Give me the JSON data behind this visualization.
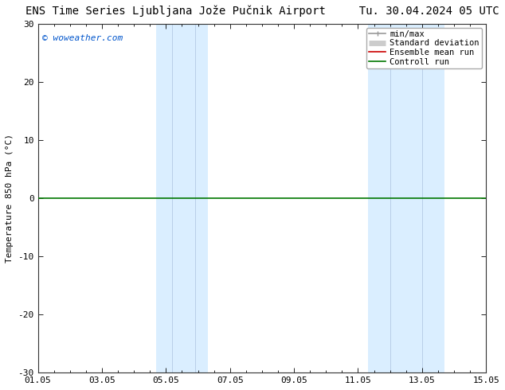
{
  "title_left": "ENS Time Series Ljubljana Jože Pučnik Airport",
  "title_right": "Tu. 30.04.2024 05 UTC",
  "ylabel": "Temperature 850 hPa (°C)",
  "watermark": "© woweather.com",
  "watermark_color": "#0055cc",
  "xlim_start": 0,
  "xlim_end": 14,
  "ylim": [
    -30,
    30
  ],
  "yticks": [
    -30,
    -20,
    -10,
    0,
    10,
    20,
    30
  ],
  "xtick_labels": [
    "01.05",
    "03.05",
    "05.05",
    "07.05",
    "09.05",
    "11.05",
    "13.05",
    "15.05"
  ],
  "xtick_positions": [
    0,
    2,
    4,
    6,
    8,
    10,
    12,
    14
  ],
  "shaded_regions": [
    {
      "xmin": 3.7,
      "xmax": 5.3,
      "color": "#daeeff"
    },
    {
      "xmin": 10.3,
      "xmax": 12.7,
      "color": "#daeeff"
    }
  ],
  "vertical_lines": [
    {
      "x": 4.2,
      "color": "#b8cfe8",
      "lw": 0.7
    },
    {
      "x": 4.9,
      "color": "#b8cfe8",
      "lw": 0.7
    },
    {
      "x": 11.0,
      "color": "#b8cfe8",
      "lw": 0.7
    },
    {
      "x": 12.0,
      "color": "#b8cfe8",
      "lw": 0.7
    }
  ],
  "zero_line_color": "#007700",
  "zero_line_lw": 1.2,
  "bg_color": "#ffffff",
  "plot_bg_color": "#ffffff",
  "legend_entries": [
    {
      "label": "min/max",
      "color": "#999999",
      "lw": 1.2
    },
    {
      "label": "Standard deviation",
      "color": "#cccccc",
      "lw": 5
    },
    {
      "label": "Ensemble mean run",
      "color": "#cc0000",
      "lw": 1.2
    },
    {
      "label": "Controll run",
      "color": "#007700",
      "lw": 1.2
    }
  ],
  "title_fontsize": 10,
  "axis_label_fontsize": 8,
  "tick_fontsize": 8,
  "legend_fontsize": 7.5,
  "watermark_fontsize": 8
}
